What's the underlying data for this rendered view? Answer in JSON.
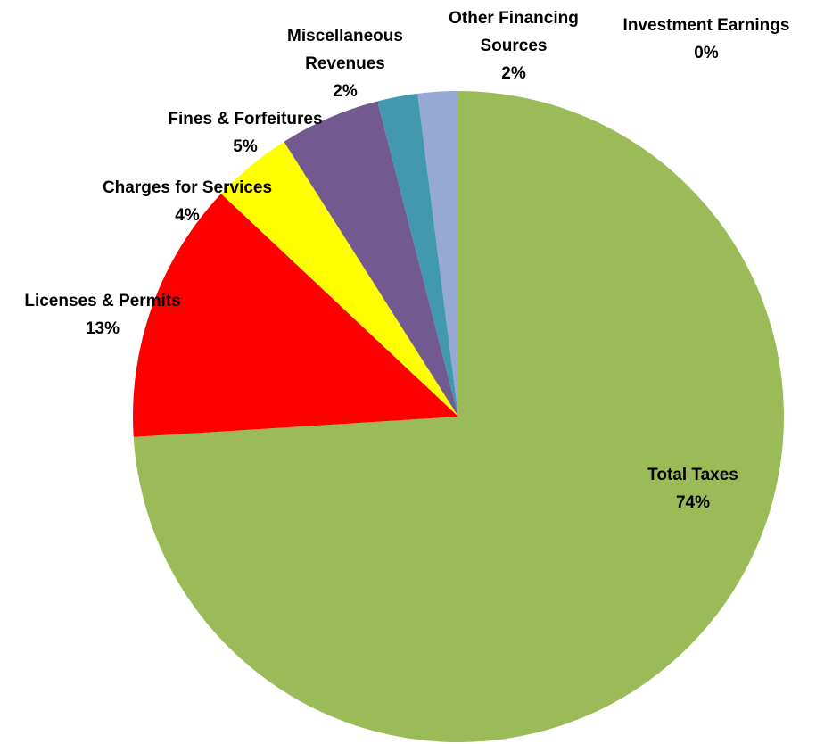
{
  "chart_data": {
    "type": "pie",
    "categories": [
      "Total Taxes",
      "Licenses & Permits",
      "Charges for Services",
      "Fines & Forfeitures",
      "Miscellaneous Revenues",
      "Other Financing Sources",
      "Investment Earnings"
    ],
    "values": [
      74,
      13,
      4,
      5,
      2,
      2,
      0
    ],
    "value_labels": [
      "74%",
      "13%",
      "4%",
      "5%",
      "2%",
      "2%",
      "0%"
    ],
    "colors": [
      "#9bbb59",
      "#ff0000",
      "#ffff00",
      "#725990",
      "#4198af",
      "#95a9d2",
      "#f79646"
    ]
  }
}
